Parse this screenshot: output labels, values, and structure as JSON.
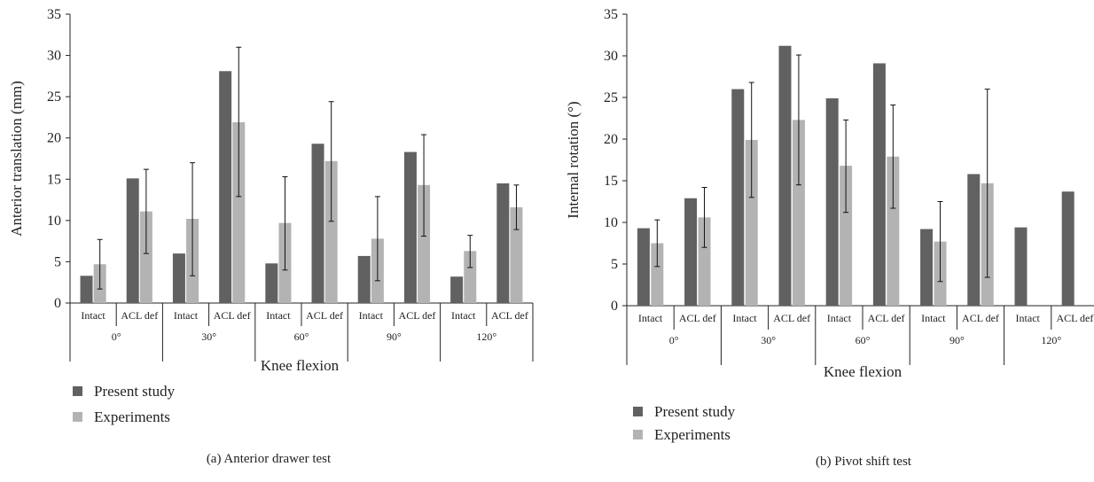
{
  "colors": {
    "present": "#616161",
    "experiments": "#b3b3b3",
    "axis": "#222222",
    "error": "#111111"
  },
  "chart_data": [
    {
      "type": "bar",
      "title": "",
      "caption": "(a)  Anterior drawer test",
      "xlabel": "Knee flexion",
      "ylabel": "Anterior translation (mm)",
      "ylim": [
        0,
        35
      ],
      "yticks": [
        0,
        5,
        10,
        15,
        20,
        25,
        30,
        35
      ],
      "grid": false,
      "legend_position": "bottom-left",
      "groups": [
        "0°",
        "30°",
        "60°",
        "90°",
        "120°"
      ],
      "categories": [
        "Intact",
        "ACL def",
        "Intact",
        "ACL def",
        "Intact",
        "ACL def",
        "Intact",
        "ACL def",
        "Intact",
        "ACL def"
      ],
      "series": [
        {
          "name": "Present study",
          "values": [
            3.3,
            15.1,
            6.0,
            28.1,
            4.8,
            19.3,
            5.7,
            18.3,
            3.2,
            14.5
          ]
        },
        {
          "name": "Experiments",
          "values": [
            4.7,
            11.1,
            10.2,
            21.9,
            9.7,
            17.2,
            7.8,
            14.3,
            6.3,
            11.6
          ],
          "error_low": [
            1.7,
            6.0,
            3.3,
            12.9,
            4.0,
            9.9,
            2.7,
            8.1,
            4.3,
            8.9
          ],
          "error_high": [
            7.7,
            16.2,
            17.0,
            31.0,
            15.3,
            24.4,
            12.9,
            20.4,
            8.2,
            14.3
          ]
        }
      ]
    },
    {
      "type": "bar",
      "title": "",
      "caption": "(b)  Pivot shift test",
      "xlabel": "Knee flexion",
      "ylabel": "Internal rotation (°)",
      "ylim": [
        0,
        35
      ],
      "yticks": [
        0,
        5,
        10,
        15,
        20,
        25,
        30,
        35
      ],
      "grid": false,
      "legend_position": "bottom-left",
      "groups": [
        "0°",
        "30°",
        "60°",
        "90°",
        "120°"
      ],
      "categories": [
        "Intact",
        "ACL def",
        "Intact",
        "ACL def",
        "Intact",
        "ACL def",
        "Intact",
        "ACL def",
        "Intact",
        "ACL def"
      ],
      "series": [
        {
          "name": "Present study",
          "values": [
            9.3,
            12.9,
            26.0,
            31.2,
            24.9,
            29.1,
            9.2,
            15.8,
            9.4,
            13.7
          ]
        },
        {
          "name": "Experiments",
          "values": [
            7.5,
            10.6,
            19.9,
            22.3,
            16.8,
            17.9,
            7.7,
            14.7,
            null,
            null
          ],
          "error_low": [
            4.7,
            7.0,
            13.0,
            14.5,
            11.2,
            11.7,
            2.9,
            3.4,
            null,
            null
          ],
          "error_high": [
            10.3,
            14.2,
            26.8,
            30.1,
            22.3,
            24.1,
            12.5,
            26.0,
            null,
            null
          ]
        }
      ]
    }
  ]
}
